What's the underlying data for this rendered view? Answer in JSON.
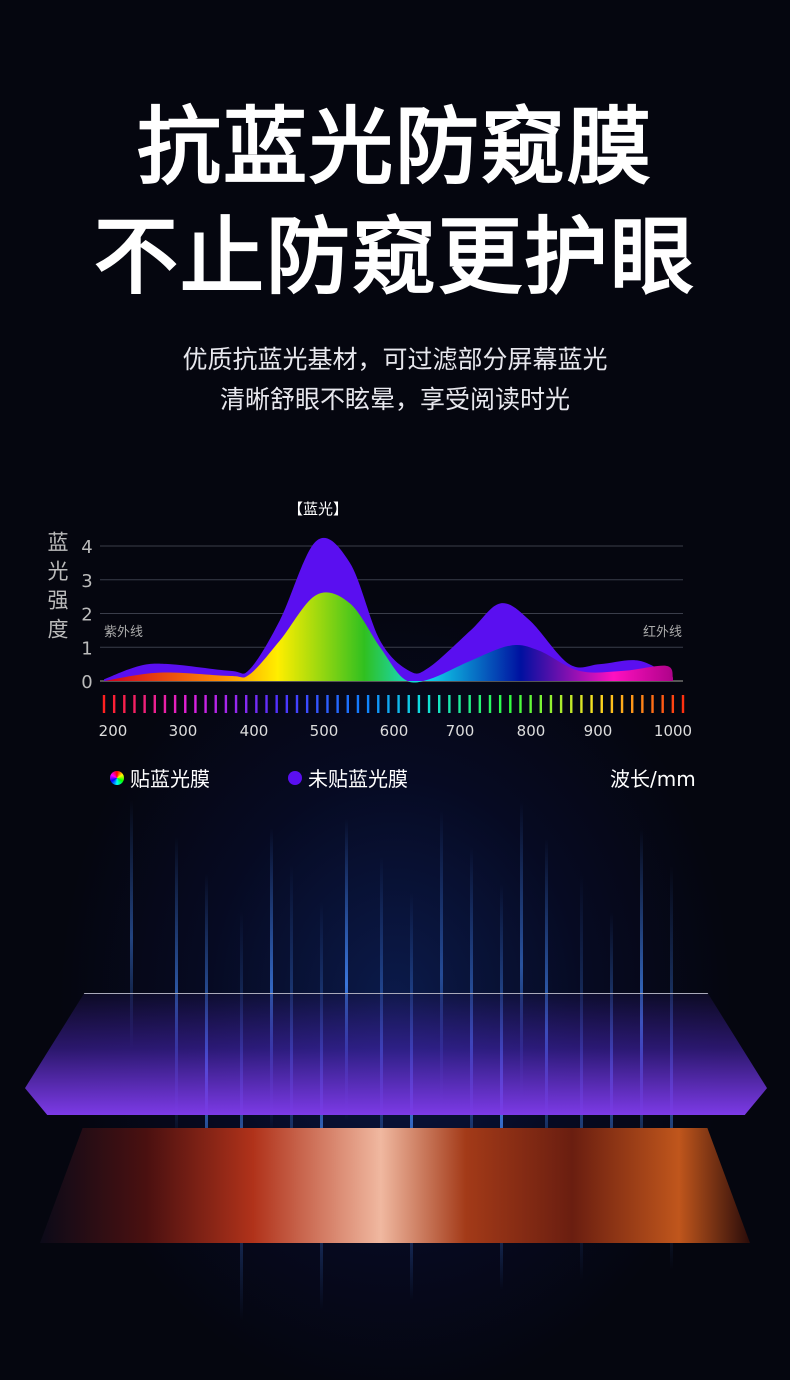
{
  "headline": {
    "line1": "抗蓝光防窥膜",
    "line2": "不止防窥更护眼"
  },
  "subtitle": {
    "line1": "优质抗蓝光基材，可过滤部分屏幕蓝光",
    "line2": "清晰舒眼不眩晕，享受阅读时光"
  },
  "chart_data": {
    "type": "area",
    "title": "【蓝光】",
    "ylabel": "蓝光强度",
    "xlabel": "波长/mm",
    "ylim": [
      0,
      4
    ],
    "yticks": [
      "0",
      "1",
      "2",
      "3",
      "4"
    ],
    "xticks": [
      "200",
      "300",
      "400",
      "500",
      "600",
      "700",
      "800",
      "900",
      "1000"
    ],
    "grid": true,
    "annotations": {
      "left": "紫外线",
      "right": "红外线"
    },
    "legend_position": "bottom",
    "series": [
      {
        "name": "未贴蓝光膜",
        "color": "#5a0ff0",
        "x": [
          190,
          238,
          281,
          367,
          394,
          437,
          489,
          537,
          580,
          623,
          653,
          715,
          757,
          798,
          857,
          903,
          955,
          1000
        ],
        "y": [
          0.05,
          0.45,
          0.5,
          0.3,
          0.35,
          1.8,
          4.15,
          3.5,
          1.2,
          0.3,
          0.4,
          1.5,
          2.3,
          1.8,
          0.5,
          0.5,
          0.6,
          0.1
        ]
      },
      {
        "name": "贴蓝光膜",
        "color": "rainbow",
        "x": [
          190,
          267,
          367,
          394,
          437,
          489,
          537,
          580,
          616,
          653,
          715,
          771,
          812,
          872,
          933,
          991,
          1000
        ],
        "y": [
          0,
          0.25,
          0.15,
          0.2,
          1.2,
          2.55,
          2.3,
          1.0,
          0.05,
          0.05,
          0.6,
          1.05,
          0.9,
          0.3,
          0.3,
          0.45,
          0.1
        ]
      }
    ]
  },
  "legend": {
    "film": "贴蓝光膜",
    "nofilm": "未贴蓝光膜",
    "unit": "波长/mm"
  }
}
